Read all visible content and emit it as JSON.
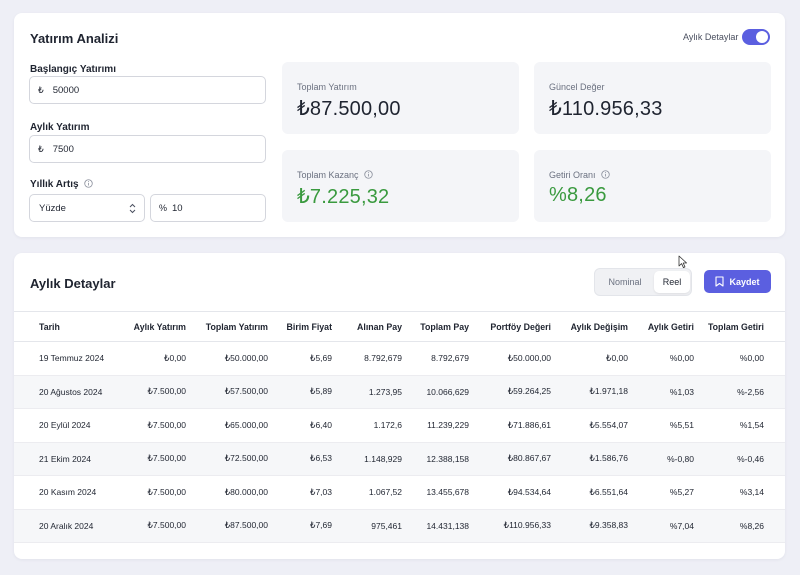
{
  "analysis": {
    "title": "Yatırım Analizi",
    "toggle_label": "Aylık Detaylar",
    "toggle_on": true,
    "initial_investment": {
      "label": "Başlangıç Yatırımı",
      "prefix": "₺",
      "value": "50000"
    },
    "monthly_investment": {
      "label": "Aylık Yatırım",
      "prefix": "₺",
      "value": "7500"
    },
    "annual_increase": {
      "label": "Yıllık Artış",
      "type_value": "Yüzde",
      "prefix": "%",
      "value": "10"
    },
    "stats": {
      "total_investment": {
        "label": "Toplam Yatırım",
        "value": "₺87.500,00"
      },
      "current_value": {
        "label": "Güncel Değer",
        "value": "₺110.956,33"
      },
      "total_gain": {
        "label": "Toplam Kazanç",
        "value": "₺7.225,32"
      },
      "return_rate": {
        "label": "Getiri Oranı",
        "value": "%8,26"
      }
    }
  },
  "details": {
    "title": "Aylık Detaylar",
    "mode_nominal": "Nominal",
    "mode_real": "Reel",
    "selected_mode": "Reel",
    "save_label": "Kaydet",
    "columns": [
      "Tarih",
      "Aylık Yatırım",
      "Toplam Yatırım",
      "Birim Fiyat",
      "Alınan Pay",
      "Toplam Pay",
      "Portföy Değeri",
      "Aylık Değişim",
      "Aylık Getiri",
      "Toplam Getiri"
    ],
    "rows": [
      [
        "19 Temmuz 2024",
        "₺0,00",
        "₺50.000,00",
        "₺5,69",
        "8.792,679",
        "8.792,679",
        "₺50.000,00",
        "₺0,00",
        "%0,00",
        "%0,00"
      ],
      [
        "20 Ağustos 2024",
        "₺7.500,00",
        "₺57.500,00",
        "₺5,89",
        "1.273,95",
        "10.066,629",
        "₺59.264,25",
        "₺1.971,18",
        "%1,03",
        "%-2,56"
      ],
      [
        "20 Eylül 2024",
        "₺7.500,00",
        "₺65.000,00",
        "₺6,40",
        "1.172,6",
        "11.239,229",
        "₺71.886,61",
        "₺5.554,07",
        "%5,51",
        "%1,54"
      ],
      [
        "21 Ekim 2024",
        "₺7.500,00",
        "₺72.500,00",
        "₺6,53",
        "1.148,929",
        "12.388,158",
        "₺80.867,67",
        "₺1.586,76",
        "%-0,80",
        "%-0,46"
      ],
      [
        "20 Kasım 2024",
        "₺7.500,00",
        "₺80.000,00",
        "₺7,03",
        "1.067,52",
        "13.455,678",
        "₺94.534,64",
        "₺6.551,64",
        "%5,27",
        "%3,14"
      ],
      [
        "20 Aralık 2024",
        "₺7.500,00",
        "₺87.500,00",
        "₺7,69",
        "975,461",
        "14.431,138",
        "₺110.956,33",
        "₺9.358,83",
        "%7,04",
        "%8,26"
      ]
    ]
  },
  "colors": {
    "accent": "#5b5fe0",
    "positive": "#3a9a3f",
    "negative": "#d2453d"
  }
}
